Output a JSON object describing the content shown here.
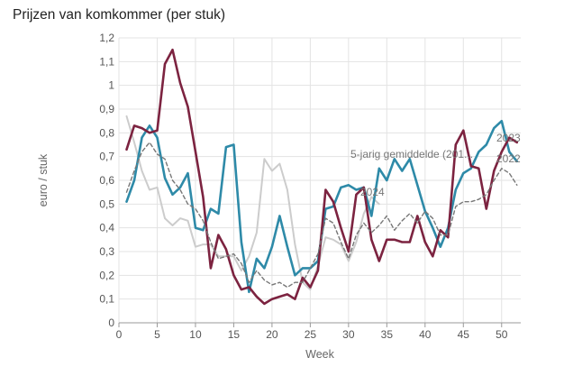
{
  "chart_data": {
    "type": "line",
    "title": "Prijzen van komkommer (per stuk)",
    "xlabel": "Week",
    "ylabel": "euro / stuk",
    "xlim": [
      0,
      52.5
    ],
    "ylim": [
      0,
      1.2
    ],
    "xticks": [
      0,
      5,
      10,
      15,
      20,
      25,
      30,
      35,
      40,
      45,
      50
    ],
    "yticks": [
      0,
      0.1,
      0.2,
      0.3,
      0.4,
      0.5,
      0.6,
      0.7,
      0.8,
      0.9,
      1,
      1.1,
      1.2
    ],
    "ytick_labels": [
      "0",
      "0,1",
      "0,2",
      "0,3",
      "0,4",
      "0,5",
      "0,6",
      "0,7",
      "0,8",
      "0,9",
      "1",
      "1,1",
      "1,2"
    ],
    "grid": true,
    "legend": "inline labels at line ends",
    "series": [
      {
        "name": "2024",
        "color": "#cccccc",
        "dashed": false,
        "x": [
          1,
          2,
          3,
          4,
          5,
          6,
          7,
          8,
          9,
          10,
          11,
          12,
          13,
          14,
          15,
          16,
          17,
          18,
          19,
          20,
          21,
          22,
          23,
          24,
          25,
          26,
          27,
          28,
          29,
          30,
          31,
          32,
          33,
          34
        ],
        "values": [
          0.87,
          0.76,
          0.64,
          0.56,
          0.57,
          0.44,
          0.41,
          0.44,
          0.43,
          0.32,
          0.33,
          0.33,
          0.28,
          0.28,
          0.28,
          0.22,
          0.28,
          0.38,
          0.69,
          0.64,
          0.67,
          0.56,
          0.33,
          0.17,
          0.14,
          0.24,
          0.36,
          0.35,
          0.33,
          0.26,
          0.34,
          0.46,
          0.53,
          0.5
        ]
      },
      {
        "name": "2022",
        "color": "#2e8aa8",
        "dashed": false,
        "x": [
          1,
          2,
          3,
          4,
          5,
          6,
          7,
          8,
          9,
          10,
          11,
          12,
          13,
          14,
          15,
          16,
          17,
          18,
          19,
          20,
          21,
          22,
          23,
          24,
          25,
          26,
          27,
          28,
          29,
          30,
          31,
          32,
          33,
          34,
          35,
          36,
          37,
          38,
          39,
          40,
          41,
          42,
          43,
          44,
          45,
          46,
          47,
          48,
          49,
          50,
          51,
          52
        ],
        "values": [
          0.51,
          0.6,
          0.78,
          0.83,
          0.78,
          0.61,
          0.54,
          0.57,
          0.63,
          0.4,
          0.39,
          0.48,
          0.46,
          0.74,
          0.75,
          0.34,
          0.13,
          0.27,
          0.23,
          0.32,
          0.45,
          0.32,
          0.2,
          0.23,
          0.23,
          0.26,
          0.48,
          0.49,
          0.57,
          0.58,
          0.56,
          0.57,
          0.45,
          0.65,
          0.6,
          0.69,
          0.64,
          0.69,
          0.58,
          0.47,
          0.4,
          0.32,
          0.4,
          0.56,
          0.63,
          0.65,
          0.72,
          0.75,
          0.82,
          0.85,
          0.72,
          0.68
        ]
      },
      {
        "name": "2023",
        "color": "#7c2340",
        "dashed": false,
        "x": [
          1,
          2,
          3,
          4,
          5,
          6,
          7,
          8,
          9,
          10,
          11,
          12,
          13,
          14,
          15,
          16,
          17,
          18,
          19,
          20,
          21,
          22,
          23,
          24,
          25,
          26,
          27,
          28,
          29,
          30,
          31,
          32,
          33,
          34,
          35,
          36,
          37,
          38,
          39,
          40,
          41,
          42,
          43,
          44,
          45,
          46,
          47,
          48,
          49,
          50,
          51,
          52
        ],
        "values": [
          0.73,
          0.83,
          0.82,
          0.8,
          0.81,
          1.09,
          1.15,
          1.01,
          0.91,
          0.72,
          0.53,
          0.23,
          0.37,
          0.31,
          0.2,
          0.14,
          0.15,
          0.11,
          0.08,
          0.1,
          0.11,
          0.12,
          0.1,
          0.19,
          0.15,
          0.22,
          0.56,
          0.51,
          0.4,
          0.3,
          0.54,
          0.57,
          0.35,
          0.26,
          0.35,
          0.35,
          0.34,
          0.34,
          0.45,
          0.34,
          0.28,
          0.39,
          0.36,
          0.75,
          0.81,
          0.66,
          0.65,
          0.48,
          0.64,
          0.72,
          0.78,
          0.76
        ]
      },
      {
        "name": "5-jarig gemiddelde (201...",
        "color": "#777777",
        "dashed": true,
        "x": [
          1,
          2,
          3,
          4,
          5,
          6,
          7,
          8,
          9,
          10,
          11,
          12,
          13,
          14,
          15,
          16,
          17,
          18,
          19,
          20,
          21,
          22,
          23,
          24,
          25,
          26,
          27,
          28,
          29,
          30,
          31,
          32,
          33,
          34,
          35,
          36,
          37,
          38,
          39,
          40,
          41,
          42,
          43,
          44,
          45,
          46,
          47,
          48,
          49,
          50,
          51,
          52
        ],
        "values": [
          0.55,
          0.64,
          0.72,
          0.76,
          0.71,
          0.69,
          0.6,
          0.56,
          0.5,
          0.48,
          0.43,
          0.34,
          0.27,
          0.28,
          0.29,
          0.25,
          0.17,
          0.22,
          0.18,
          0.16,
          0.17,
          0.15,
          0.17,
          0.17,
          0.23,
          0.29,
          0.44,
          0.42,
          0.34,
          0.27,
          0.37,
          0.42,
          0.38,
          0.41,
          0.45,
          0.39,
          0.43,
          0.46,
          0.42,
          0.47,
          0.44,
          0.37,
          0.37,
          0.49,
          0.51,
          0.51,
          0.52,
          0.54,
          0.6,
          0.65,
          0.63,
          0.58
        ]
      }
    ]
  }
}
